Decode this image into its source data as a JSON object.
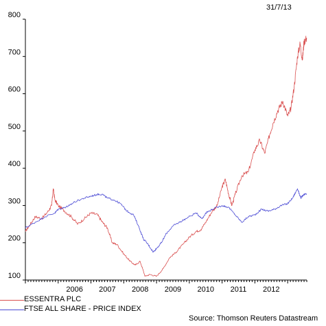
{
  "date_label": "31/7/13",
  "source": "Source: Thomson Reuters Datastream",
  "chart_data": {
    "type": "line",
    "y_ticks": [
      100,
      200,
      300,
      400,
      500,
      600,
      700,
      800
    ],
    "ylim": [
      100,
      800
    ],
    "x_ticks": [
      "2006",
      "2007",
      "2008",
      "2009",
      "2010",
      "2011",
      "2012"
    ],
    "xlim": [
      2005.0,
      2013.583
    ],
    "grid": false,
    "legend_position": "bottom-left",
    "series": [
      {
        "name": "ESSENTRA PLC",
        "color": "#d94f4f",
        "x": [
          2005.0,
          2005.15,
          2005.3,
          2005.5,
          2005.7,
          2005.8,
          2005.85,
          2005.9,
          2006.0,
          2006.2,
          2006.4,
          2006.6,
          2006.8,
          2007.0,
          2007.2,
          2007.35,
          2007.5,
          2007.65,
          2007.8,
          2008.0,
          2008.2,
          2008.35,
          2008.5,
          2008.65,
          2008.8,
          2009.0,
          2009.2,
          2009.4,
          2009.6,
          2009.8,
          2010.0,
          2010.2,
          2010.35,
          2010.5,
          2010.7,
          2010.85,
          2011.0,
          2011.1,
          2011.2,
          2011.3,
          2011.4,
          2011.6,
          2011.8,
          2012.0,
          2012.15,
          2012.3,
          2012.45,
          2012.55,
          2012.7,
          2012.85,
          2013.0,
          2013.1,
          2013.2,
          2013.3,
          2013.38,
          2013.45,
          2013.5,
          2013.583
        ],
        "y": [
          230,
          250,
          270,
          265,
          285,
          300,
          345,
          315,
          300,
          285,
          270,
          250,
          265,
          280,
          275,
          255,
          240,
          200,
          195,
          170,
          150,
          140,
          150,
          110,
          115,
          110,
          130,
          160,
          175,
          195,
          215,
          230,
          235,
          255,
          285,
          300,
          350,
          370,
          330,
          300,
          330,
          380,
          390,
          450,
          475,
          440,
          490,
          520,
          555,
          580,
          540,
          560,
          620,
          700,
          735,
          690,
          740,
          750
        ]
      },
      {
        "name": "FTSE ALL SHARE - PRICE INDEX",
        "color": "#4a4ad4",
        "x": [
          2005.0,
          2005.3,
          2005.6,
          2005.9,
          2006.0,
          2006.2,
          2006.35,
          2006.5,
          2006.8,
          2007.0,
          2007.2,
          2007.35,
          2007.5,
          2007.7,
          2007.9,
          2008.1,
          2008.3,
          2008.45,
          2008.6,
          2008.75,
          2008.9,
          2009.0,
          2009.15,
          2009.3,
          2009.5,
          2009.7,
          2009.9,
          2010.2,
          2010.4,
          2010.5,
          2010.7,
          2011.0,
          2011.2,
          2011.4,
          2011.6,
          2011.8,
          2012.0,
          2012.2,
          2012.4,
          2012.6,
          2012.8,
          2013.0,
          2013.15,
          2013.3,
          2013.4,
          2013.5,
          2013.583
        ],
        "y": [
          240,
          255,
          270,
          280,
          290,
          295,
          300,
          310,
          320,
          325,
          330,
          330,
          320,
          315,
          305,
          285,
          275,
          245,
          210,
          195,
          175,
          185,
          200,
          225,
          245,
          255,
          265,
          280,
          265,
          280,
          290,
          300,
          295,
          275,
          255,
          270,
          275,
          290,
          285,
          290,
          300,
          305,
          320,
          345,
          320,
          330,
          330
        ]
      }
    ]
  }
}
